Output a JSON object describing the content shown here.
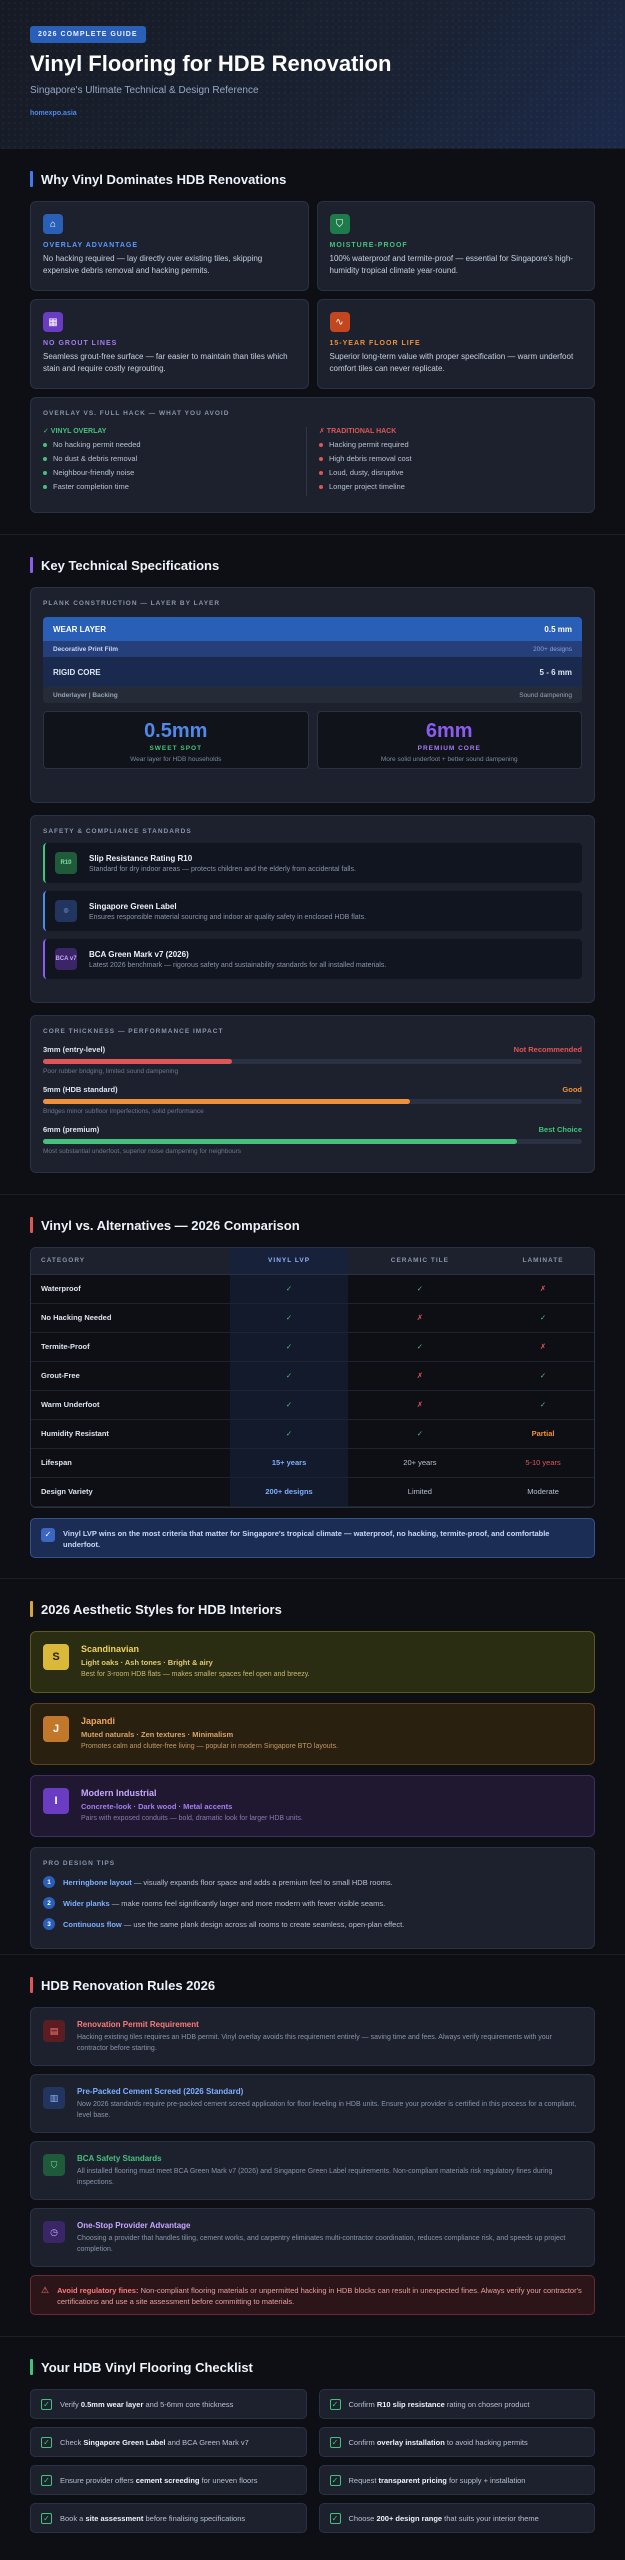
{
  "hero": {
    "pill": "2026 COMPLETE GUIDE",
    "title": "Vinyl Flooring for HDB Renovation",
    "subtitle": "Singapore's Ultimate Technical & Design Reference",
    "site": "homexpo.asia"
  },
  "why": {
    "title": "Why Vinyl Dominates HDB Renovations",
    "cards": [
      {
        "label": "OVERLAY ADVANTAGE",
        "text": "No hacking required — lay directly over existing tiles, skipping expensive debris removal and hacking permits.",
        "icon": "house-icon"
      },
      {
        "label": "MOISTURE-PROOF",
        "text": "100% waterproof and termite-proof — essential for Singapore's high-humidity tropical climate year-round.",
        "icon": "shield-icon"
      },
      {
        "label": "NO GROUT LINES",
        "text": "Seamless grout-free surface — far easier to maintain than tiles which stain and require costly regrouting.",
        "icon": "grid-icon"
      },
      {
        "label": "15-YEAR FLOOR LIFE",
        "text": "Superior long-term value with proper specification — warm underfoot comfort tiles can never replicate.",
        "icon": "pulse-icon"
      }
    ],
    "compare": {
      "heading": "OVERLAY VS. FULL HACK — WHAT YOU AVOID",
      "left_head": "✓ VINYL OVERLAY",
      "left": [
        "No hacking permit needed",
        "No dust & debris removal",
        "Neighbour-friendly noise",
        "Faster completion time"
      ],
      "right_head": "✗ TRADITIONAL HACK",
      "right": [
        "Hacking permit required",
        "High debris removal cost",
        "Loud, dusty, disruptive",
        "Longer project timeline"
      ]
    }
  },
  "specs": {
    "title": "Key Technical Specifications",
    "plank_heading": "PLANK CONSTRUCTION — LAYER BY LAYER",
    "layers": [
      {
        "name": "WEAR LAYER",
        "value": "0.5 mm"
      },
      {
        "name": "Decorative Print Film",
        "value": "200+ designs"
      },
      {
        "name": "RIGID CORE",
        "value": "5 - 6 mm"
      },
      {
        "name": "Underlayer | Backing",
        "value": "Sound dampening"
      }
    ],
    "stats": [
      {
        "big": "0.5mm",
        "label": "SWEET SPOT",
        "note": "Wear layer for HDB households"
      },
      {
        "big": "6mm",
        "label": "PREMIUM CORE",
        "note": "More solid underfoot + better sound dampening"
      }
    ],
    "safety_heading": "SAFETY & COMPLIANCE STANDARDS",
    "safety": [
      {
        "badge": "R10",
        "title": "Slip Resistance Rating R10",
        "text": "Standard for dry indoor areas — protects children and the elderly from accidental falls."
      },
      {
        "badge": "◎",
        "title": "Singapore Green Label",
        "text": "Ensures responsible material sourcing and indoor air quality safety in enclosed HDB flats."
      },
      {
        "badge": "BCA v7",
        "title": "BCA Green Mark v7 (2026)",
        "text": "Latest 2026 benchmark — rigorous safety and sustainability standards for all installed materials."
      }
    ],
    "thick_heading": "CORE THICKNESS — PERFORMANCE IMPACT",
    "thickness": [
      {
        "name": "3mm (entry-level)",
        "verdict": "Not Recommended",
        "note": "Poor rubber bridging, limited sound dampening",
        "fraction": 0.35
      },
      {
        "name": "5mm (HDB standard)",
        "verdict": "Good",
        "note": "Bridges minor subfloor imperfections, solid performance",
        "fraction": 0.68
      },
      {
        "name": "6mm (premium)",
        "verdict": "Best Choice",
        "note": "Most substantial underfoot, superior noise dampening for neighbours",
        "fraction": 0.88
      }
    ]
  },
  "comparison": {
    "title": "Vinyl vs. Alternatives — 2026 Comparison",
    "headers": [
      "CATEGORY",
      "VINYL LVP",
      "CERAMIC TILE",
      "LAMINATE"
    ],
    "rows": [
      [
        "Waterproof",
        "✓",
        "✓",
        "✗"
      ],
      [
        "No Hacking Needed",
        "✓",
        "✗",
        "✓"
      ],
      [
        "Termite-Proof",
        "✓",
        "✓",
        "✗"
      ],
      [
        "Grout-Free",
        "✓",
        "✗",
        "✓"
      ],
      [
        "Warm Underfoot",
        "✓",
        "✗",
        "✓"
      ],
      [
        "Humidity Resistant",
        "✓",
        "✓",
        "Partial"
      ],
      [
        "Lifespan",
        "15+ years",
        "20+ years",
        "5-10 years"
      ],
      [
        "Design Variety",
        "200+ designs",
        "Limited",
        "Moderate"
      ]
    ],
    "note": "Vinyl LVP wins on the most criteria that matter for Singapore's tropical climate — waterproof, no hacking, termite-proof, and comfortable underfoot."
  },
  "styles": {
    "title": "2026 Aesthetic Styles for HDB Interiors",
    "items": [
      {
        "badge": "S",
        "name": "Scandinavian",
        "keys": "Light oaks · Ash tones · Bright & airy",
        "desc": "Best for 3-room HDB flats — makes smaller spaces feel open and breezy."
      },
      {
        "badge": "J",
        "name": "Japandi",
        "keys": "Muted naturals · Zen textures · Minimalism",
        "desc": "Promotes calm and clutter-free living — popular in modern Singapore BTO layouts."
      },
      {
        "badge": "I",
        "name": "Modern Industrial",
        "keys": "Concrete-look · Dark wood · Metal accents",
        "desc": "Pairs with exposed conduits — bold, dramatic look for larger HDB units."
      }
    ],
    "tips_heading": "PRO DESIGN TIPS",
    "tips": [
      {
        "n": "1",
        "b": "Herringbone layout",
        "t": " — visually expands floor space and adds a premium feel to small HDB rooms."
      },
      {
        "n": "2",
        "b": "Wider planks",
        "t": " — make rooms feel significantly larger and more modern with fewer visible seams."
      },
      {
        "n": "3",
        "b": "Continuous flow",
        "t": " — use the same plank design across all rooms to create seamless, open-plan effect."
      }
    ]
  },
  "rules": {
    "title": "HDB Renovation Rules 2026",
    "items": [
      {
        "title": "Renovation Permit Requirement",
        "text": "Hacking existing tiles requires an HDB permit. Vinyl overlay avoids this requirement entirely — saving time and fees. Always verify requirements with your contractor before starting."
      },
      {
        "title": "Pre-Packed Cement Screed (2026 Standard)",
        "text": "Now 2026 standards require pre-packed cement screed application for floor leveling in HDB units. Ensure your provider is certified in this process for a compliant, level base."
      },
      {
        "title": "BCA Safety Standards",
        "text": "All installed flooring must meet BCA Green Mark v7 (2026) and Singapore Green Label requirements. Non-compliant materials risk regulatory fines during inspections."
      },
      {
        "title": "One-Stop Provider Advantage",
        "text": "Choosing a provider that handles tiling, cement works, and carpentry eliminates multi-contractor coordination, reduces compliance risk, and speeds up project completion."
      }
    ],
    "warning_b": "Avoid regulatory fines:",
    "warning_t": " Non-compliant flooring materials or unpermitted hacking in HDB blocks can result in unexpected fines. Always verify your contractor's certifications and use a site assessment before committing to materials."
  },
  "checklist": {
    "title": "Your HDB Vinyl Flooring Checklist",
    "items": [
      {
        "pre": "Verify ",
        "b": "0.5mm wear layer",
        "post": " and 5-6mm core thickness"
      },
      {
        "pre": "Confirm ",
        "b": "R10 slip resistance",
        "post": " rating on chosen product"
      },
      {
        "pre": "Check ",
        "b": "Singapore Green Label",
        "post": " and BCA Green Mark v7"
      },
      {
        "pre": "Confirm ",
        "b": "overlay installation",
        "post": " to avoid hacking permits"
      },
      {
        "pre": "Ensure provider offers ",
        "b": "cement screeding",
        "post": " for uneven floors"
      },
      {
        "pre": "Request ",
        "b": "transparent pricing",
        "post": " for supply + installation"
      },
      {
        "pre": "Book a ",
        "b": "site assessment",
        "post": " before finalising specifications"
      },
      {
        "pre": "Choose ",
        "b": "200+ design range",
        "post": " that suits your interior theme"
      }
    ]
  }
}
